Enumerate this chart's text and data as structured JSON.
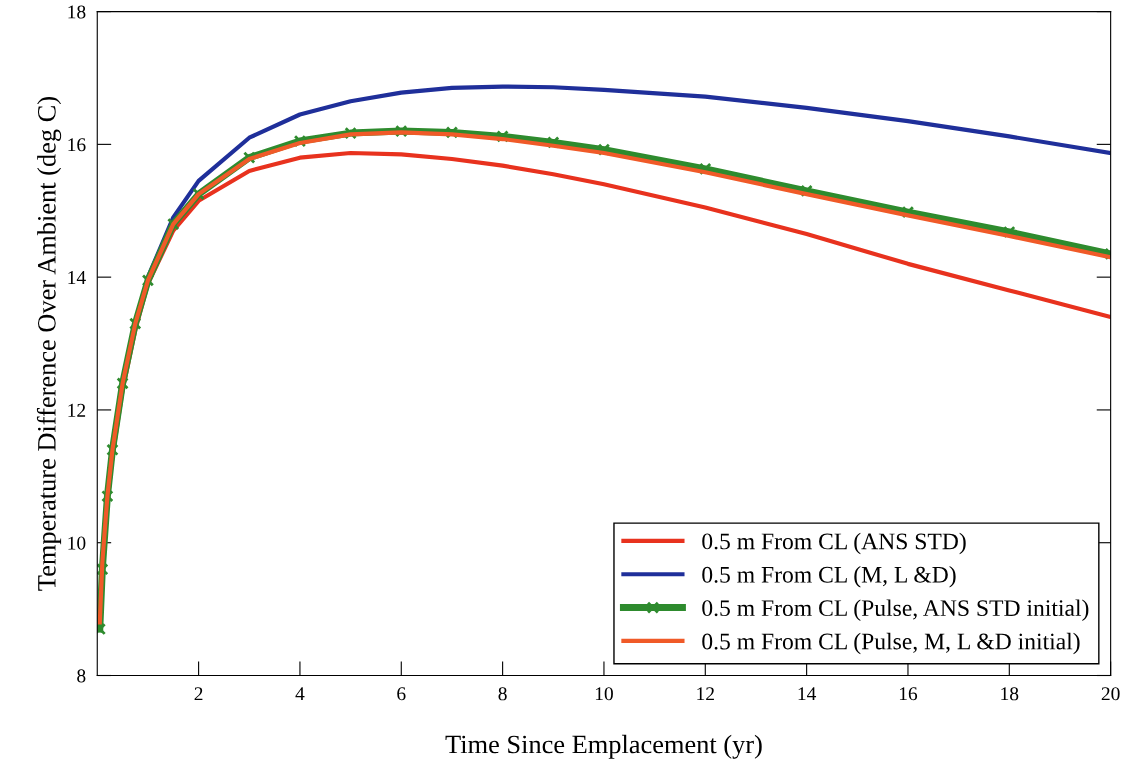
{
  "chart_data": {
    "type": "line",
    "xlabel": "Time Since Emplacement (yr)",
    "ylabel": "Temperature Difference Over Ambient (deg C)",
    "x": [
      0.05,
      0.1,
      0.2,
      0.3,
      0.5,
      0.75,
      1,
      1.5,
      2,
      3,
      4,
      5,
      6,
      7,
      8,
      9,
      10,
      12,
      14,
      16,
      18,
      20
    ],
    "series": [
      {
        "name": "0.5 m From CL (ANS STD)",
        "color": "#e8321e",
        "marker": "none",
        "values": [
          8.7,
          9.6,
          10.6,
          11.3,
          12.3,
          13.2,
          13.9,
          14.7,
          15.15,
          15.6,
          15.8,
          15.87,
          15.85,
          15.78,
          15.68,
          15.55,
          15.4,
          15.05,
          14.65,
          14.2,
          13.8,
          13.4
        ]
      },
      {
        "name": "0.5 m From CL (M, L &D)",
        "color": "#1f2f9a",
        "marker": "none",
        "values": [
          null,
          null,
          null,
          null,
          null,
          null,
          14.0,
          14.9,
          15.45,
          16.1,
          16.45,
          16.65,
          16.78,
          16.85,
          16.87,
          16.86,
          16.82,
          16.72,
          16.55,
          16.35,
          16.12,
          15.87
        ]
      },
      {
        "name": "0.5 m From CL (Pulse, ANS STD initial)",
        "color": "#2e8b2e",
        "marker": "cross",
        "values": [
          8.7,
          9.6,
          10.7,
          11.4,
          12.4,
          13.3,
          13.95,
          14.8,
          15.25,
          15.8,
          16.05,
          16.17,
          16.2,
          16.18,
          16.12,
          16.03,
          15.92,
          15.63,
          15.3,
          14.98,
          14.68,
          14.35
        ]
      },
      {
        "name": "0.5 m From CL (Pulse, M, L &D initial)",
        "color": "#f05a28",
        "marker": "none",
        "values": [
          8.8,
          9.7,
          10.7,
          11.4,
          12.4,
          13.3,
          13.95,
          14.8,
          15.25,
          15.78,
          16.02,
          16.15,
          16.18,
          16.15,
          16.08,
          15.98,
          15.87,
          15.58,
          15.25,
          14.93,
          14.62,
          14.3
        ]
      }
    ],
    "xlim": [
      0,
      20
    ],
    "xticks": [
      2,
      4,
      6,
      8,
      10,
      12,
      14,
      16,
      18,
      20
    ],
    "ylim": [
      8,
      18
    ],
    "yticks": [
      8,
      10,
      12,
      14,
      16,
      18
    ],
    "grid": false,
    "legend": "bottom right",
    "line_style": "solid"
  }
}
